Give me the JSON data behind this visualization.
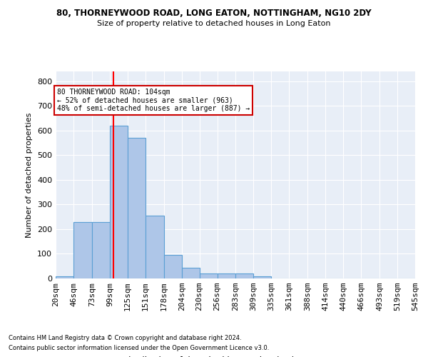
{
  "title1": "80, THORNEYWOOD ROAD, LONG EATON, NOTTINGHAM, NG10 2DY",
  "title2": "Size of property relative to detached houses in Long Eaton",
  "xlabel": "Distribution of detached houses by size in Long Eaton",
  "ylabel": "Number of detached properties",
  "bar_heights": [
    10,
    228,
    228,
    619,
    570,
    254,
    97,
    43,
    20,
    20,
    20,
    10,
    0,
    0,
    0,
    0,
    0,
    0,
    0,
    0
  ],
  "bin_edges": [
    20,
    46,
    73,
    99,
    125,
    151,
    178,
    204,
    230,
    256,
    283,
    309,
    335,
    361,
    388,
    414,
    440,
    466,
    493,
    519,
    545
  ],
  "tick_labels": [
    "20sqm",
    "46sqm",
    "73sqm",
    "99sqm",
    "125sqm",
    "151sqm",
    "178sqm",
    "204sqm",
    "230sqm",
    "256sqm",
    "283sqm",
    "309sqm",
    "335sqm",
    "361sqm",
    "388sqm",
    "414sqm",
    "440sqm",
    "466sqm",
    "493sqm",
    "519sqm",
    "545sqm"
  ],
  "bar_color": "#aec6e8",
  "bar_edge_color": "#5a9fd4",
  "red_line_x": 104,
  "ylim": [
    0,
    840
  ],
  "yticks": [
    0,
    100,
    200,
    300,
    400,
    500,
    600,
    700,
    800
  ],
  "annotation_line1": "80 THORNEYWOOD ROAD: 104sqm",
  "annotation_line2": "← 52% of detached houses are smaller (963)",
  "annotation_line3": "48% of semi-detached houses are larger (887) →",
  "annotation_box_color": "#ffffff",
  "annotation_box_edge": "#cc0000",
  "bg_color": "#e8eef7",
  "grid_color": "#ffffff",
  "footnote1": "Contains HM Land Registry data © Crown copyright and database right 2024.",
  "footnote2": "Contains public sector information licensed under the Open Government Licence v3.0."
}
